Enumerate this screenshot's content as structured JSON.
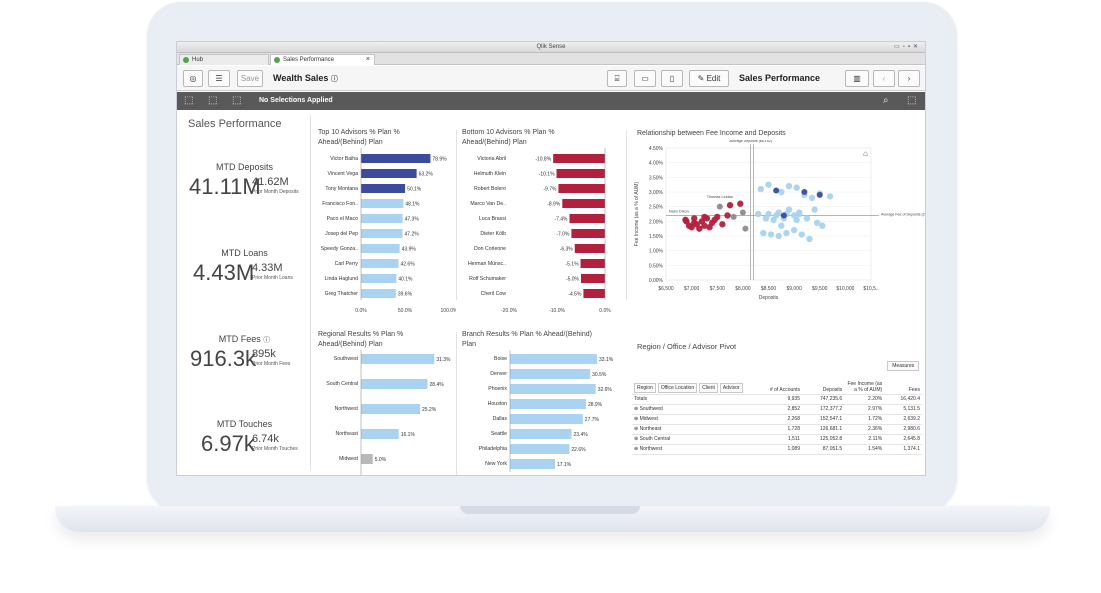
{
  "window": {
    "title": "Qlik Sense"
  },
  "tabs": [
    {
      "label": "Hub"
    },
    {
      "label": "Sales Performance"
    }
  ],
  "toolbar": {
    "save_label": "Save",
    "app_title": "Wealth Sales",
    "edit_label": "Edit",
    "sheet_title": "Sales Performance"
  },
  "selections": {
    "label": "No Selections Applied"
  },
  "sheet": {
    "name": "Sales Performance"
  },
  "kpis": [
    {
      "title": "MTD Deposits",
      "value": "41.11M",
      "prior": "41.62M",
      "prior_label": "Prior Month Deposits"
    },
    {
      "title": "MTD Loans",
      "value": "4.43M",
      "prior": "4.33M",
      "prior_label": "Prior Month Loans"
    },
    {
      "title": "MTD Fees",
      "value": "916.3k",
      "prior": "895k",
      "prior_label": "Prior Month Fees"
    },
    {
      "title": "MTD Touches",
      "value": "6.97k",
      "prior": "6.74k",
      "prior_label": "Prior Month Touches"
    }
  ],
  "colors": {
    "dark_blue": "#3c4b9c",
    "light_blue": "#a9d3f0",
    "crimson": "#b3203e",
    "gray": "#b9b9b9"
  },
  "chart_data": [
    {
      "type": "bar",
      "title": "Top 10 Advisors % Plan % Ahead/(Behind) Plan",
      "categories": [
        "Victor Baiha",
        "Vincent Vega",
        "Tony Montana",
        "Francisco Fon..",
        "Paco el Maco",
        "Josep del Pep",
        "Speedy Gonza..",
        "Carl Perry",
        "Linda Haglund",
        "Greg Thatcher"
      ],
      "values": [
        78.9,
        63.2,
        50.1,
        48.1,
        47.3,
        47.2,
        43.9,
        42.6,
        40.1,
        39.6
      ],
      "labels": [
        "78.9%",
        "63.2%",
        "50.1%",
        "48.1%",
        "47.3%",
        "47.2%",
        "43.9%",
        "42.6%",
        "40.1%",
        "39.6%"
      ],
      "dark_count": 3,
      "xlim": [
        0,
        100
      ],
      "ticks": [
        "0.0%",
        "50.0%",
        "100.0%"
      ]
    },
    {
      "type": "bar",
      "title": "Bottom 10 Advisors % Plan % Ahead/(Behind) Plan",
      "categories": [
        "Victoria Abril",
        "Helmuth Klein",
        "Robert Bolero",
        "Marco Van De..",
        "Luca Brassi",
        "Dieter Kölb",
        "Don Corleone",
        "Herman Münsc..",
        "Rolf Schumaker",
        "Cheril Cow"
      ],
      "values": [
        -10.8,
        -10.1,
        -9.7,
        -8.9,
        -7.4,
        -7.0,
        -6.3,
        -5.1,
        -5.0,
        -4.5
      ],
      "labels": [
        "-10.8%",
        "-10.1%",
        "-9.7%",
        "-8.9%",
        "-7.4%",
        "-7.0%",
        "-6.3%",
        "-5.1%",
        "-5.0%",
        "-4.5%"
      ],
      "xlim": [
        -20,
        0
      ],
      "ticks": [
        "-20.0%",
        "-10.0%",
        "0.0%"
      ]
    },
    {
      "type": "scatter",
      "title": "Relationship between Fee Income and Deposits",
      "xlabel": "Deposits",
      "ylabel": "Fee Income (as a % of AUM)",
      "xticks": [
        "$6,500",
        "$7,000",
        "$7,500",
        "$8,000",
        "$8,500",
        "$9,000",
        "$9,500",
        "$10,000",
        "$10,5.."
      ],
      "yticks": [
        "4.50%",
        "4.00%",
        "3.50%",
        "3.00%",
        "2.50%",
        "2.00%",
        "1.50%",
        "1.00%",
        "0.50%",
        "0.00%"
      ],
      "xlim": [
        6500,
        10500
      ],
      "ylim": [
        0,
        4.5
      ],
      "ref_x_label": "Average Deposits ($8,152)",
      "ref_y_label": "Average Fee of Deposits (2.20%)",
      "annotations": [
        "Thomas Lindan",
        "Nairo Dixon"
      ],
      "crimson_points": [
        [
          6880,
          2.05
        ],
        [
          6950,
          1.85
        ],
        [
          7000,
          1.8
        ],
        [
          7050,
          2.1
        ],
        [
          7100,
          1.9
        ],
        [
          7150,
          1.75
        ],
        [
          7200,
          2.0
        ],
        [
          7250,
          1.85
        ],
        [
          7300,
          2.1
        ],
        [
          7350,
          1.8
        ],
        [
          7400,
          1.95
        ],
        [
          7450,
          2.05
        ],
        [
          7500,
          2.15
        ],
        [
          7600,
          1.9
        ],
        [
          7700,
          2.2
        ],
        [
          6900,
          2.0
        ],
        [
          7050,
          1.95
        ],
        [
          7250,
          2.15
        ],
        [
          7750,
          2.55
        ],
        [
          7950,
          2.6
        ]
      ],
      "gray_points": [
        [
          7550,
          2.5
        ],
        [
          7820,
          2.15
        ],
        [
          8000,
          2.3
        ],
        [
          8050,
          1.75
        ]
      ],
      "blue_points": [
        [
          8300,
          2.25
        ],
        [
          8450,
          2.1
        ],
        [
          8500,
          2.25
        ],
        [
          8600,
          2.05
        ],
        [
          8650,
          2.2
        ],
        [
          8700,
          2.3
        ],
        [
          8750,
          1.85
        ],
        [
          8800,
          2.1
        ],
        [
          8850,
          2.25
        ],
        [
          8900,
          2.4
        ],
        [
          9000,
          2.2
        ],
        [
          9050,
          2.05
        ],
        [
          9100,
          2.3
        ],
        [
          8400,
          1.6
        ],
        [
          8550,
          1.55
        ],
        [
          8700,
          1.5
        ],
        [
          8850,
          1.6
        ],
        [
          9000,
          1.7
        ],
        [
          9150,
          1.55
        ],
        [
          9300,
          1.4
        ],
        [
          8350,
          3.1
        ],
        [
          8500,
          3.25
        ],
        [
          8750,
          3.0
        ],
        [
          8900,
          3.2
        ],
        [
          9050,
          3.15
        ],
        [
          9200,
          2.9
        ],
        [
          9350,
          2.8
        ],
        [
          9500,
          2.95
        ],
        [
          9700,
          2.85
        ],
        [
          9100,
          2.25
        ],
        [
          9250,
          2.1
        ],
        [
          9450,
          1.95
        ],
        [
          9550,
          1.85
        ],
        [
          9400,
          2.4
        ]
      ],
      "navy_points": [
        [
          8650,
          3.05
        ],
        [
          9200,
          3.0
        ],
        [
          9500,
          2.9
        ],
        [
          8800,
          2.2
        ]
      ]
    },
    {
      "type": "bar",
      "title": "Regional Results % Plan % Ahead/(Behind) Plan",
      "categories": [
        "Southwest",
        "South Central",
        "Northwest",
        "Northeast",
        "Midwest"
      ],
      "values": [
        31.3,
        28.4,
        25.2,
        16.1,
        5.0
      ],
      "labels": [
        "31.3%",
        "28.4%",
        "25.2%",
        "16.1%",
        "5.0%"
      ],
      "xlim": [
        0,
        35
      ]
    },
    {
      "type": "bar",
      "title": "Branch Results % Plan % Ahead/(Behind) Plan",
      "categories": [
        "Boise",
        "Denver",
        "Phoenix",
        "Houston",
        "Dallas",
        "Seattle",
        "Philadelphia",
        "New York"
      ],
      "values": [
        33.1,
        30.5,
        32.6,
        28.9,
        27.7,
        23.4,
        22.6,
        17.1
      ],
      "labels": [
        "33.1%",
        "30.5%",
        "32.6%",
        "28.9%",
        "27.7%",
        "23.4%",
        "22.6%",
        "17.1%"
      ],
      "xlim": [
        0,
        35
      ]
    },
    {
      "type": "table",
      "title": "Region / Office / Advisor Pivot",
      "measures_label": "Measures",
      "dimensions": [
        "Region",
        "Office Location",
        "Client",
        "Advisor"
      ],
      "columns": [
        "# of Accounts",
        "Deposits",
        "Fee Income (as a % of AUM)",
        "Fees"
      ],
      "rows": [
        {
          "name": "Totals",
          "values": [
            "9,935",
            "747,235.6",
            "2.20%",
            "16,420.4"
          ]
        },
        {
          "name": "Southwest",
          "values": [
            "2,852",
            "172,377.2",
            "2.97%",
            "5,131.5"
          ]
        },
        {
          "name": "Midwest",
          "values": [
            "2,268",
            "152,547.1",
            "1.72%",
            "2,639.2"
          ]
        },
        {
          "name": "Northeast",
          "values": [
            "1,728",
            "126,681.1",
            "2.36%",
            "2,980.6"
          ]
        },
        {
          "name": "South Central",
          "values": [
            "1,511",
            "125,052.8",
            "2.11%",
            "2,645.8"
          ]
        },
        {
          "name": "Northwest",
          "values": [
            "1,089",
            "87,051.5",
            "1.54%",
            "1,374.1"
          ]
        }
      ]
    }
  ]
}
